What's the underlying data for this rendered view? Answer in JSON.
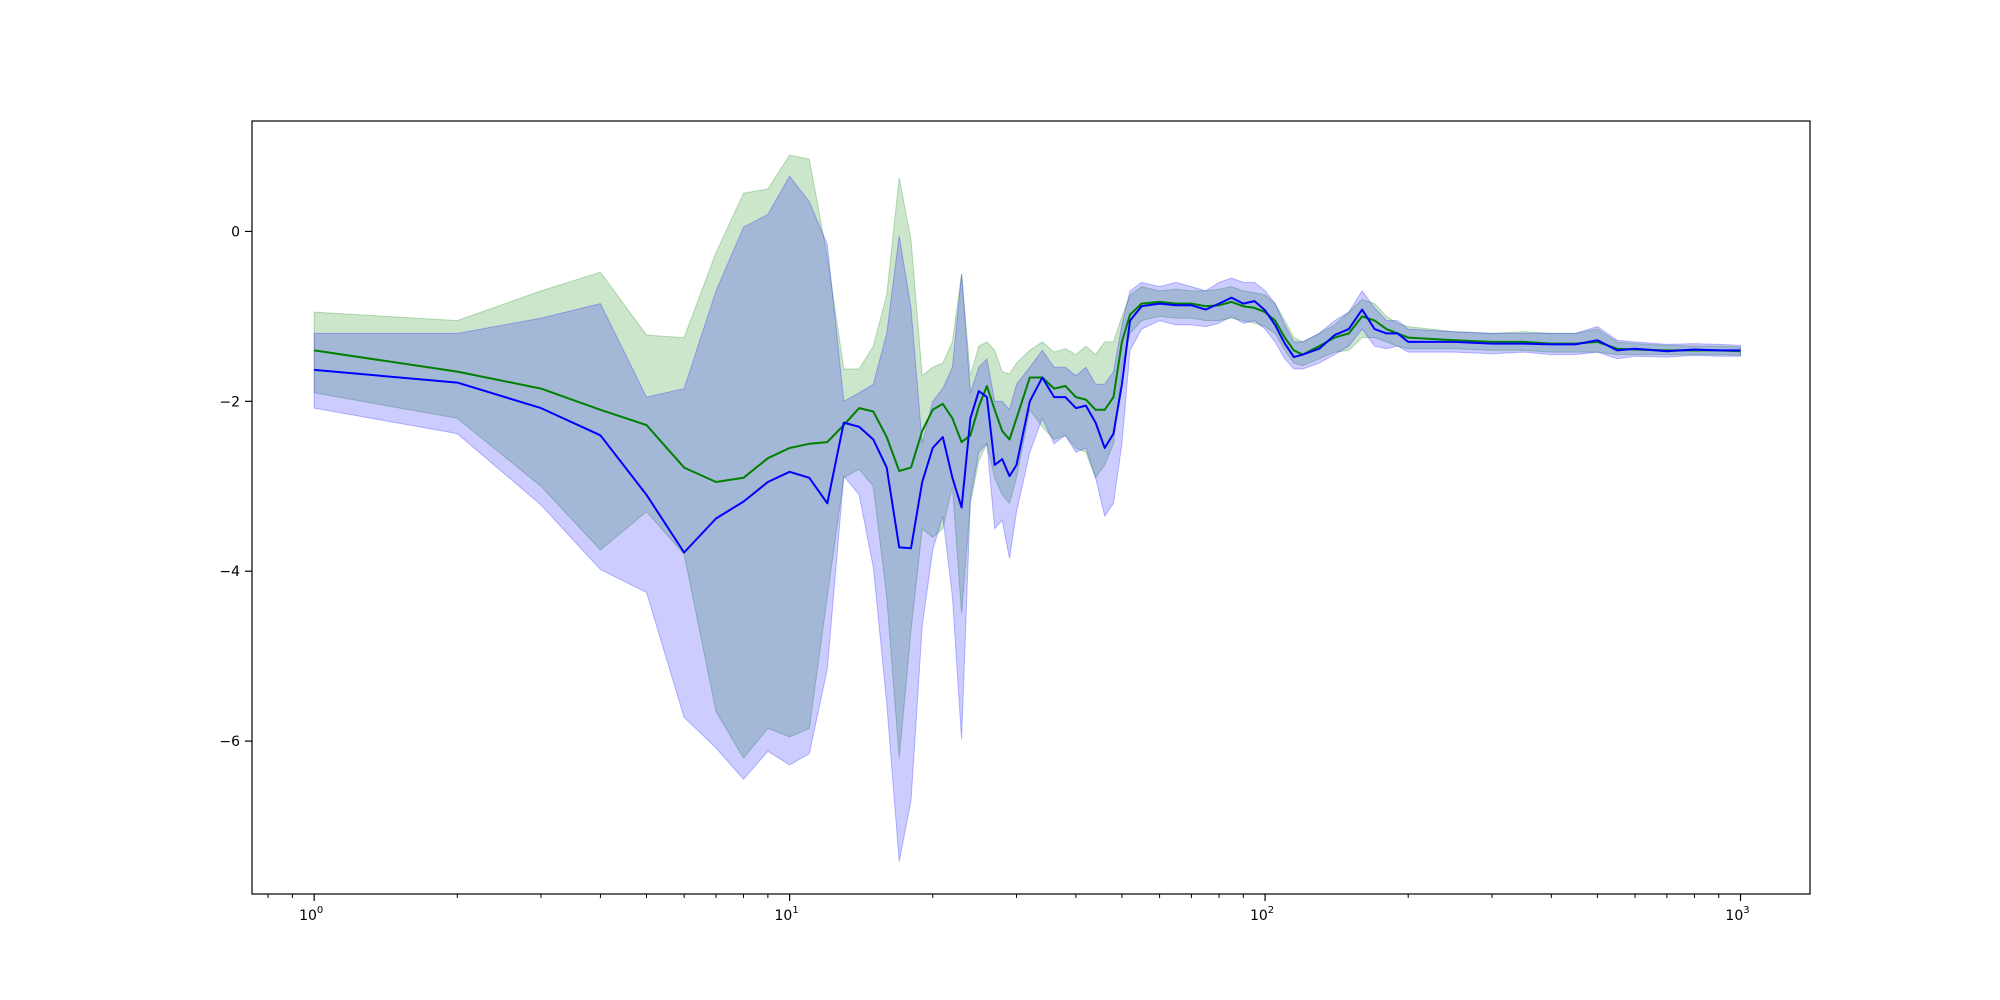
{
  "chart_data": {
    "type": "line",
    "title": "",
    "xlabel": "",
    "ylabel": "",
    "xscale": "log",
    "xlim": [
      0.74,
      1400
    ],
    "ylim": [
      -7.8,
      1.3
    ],
    "grid": false,
    "legend": "none",
    "x_ticks": [
      {
        "value": 1,
        "base": "10",
        "exp": "0"
      },
      {
        "value": 10,
        "base": "10",
        "exp": "1"
      },
      {
        "value": 100,
        "base": "10",
        "exp": "2"
      },
      {
        "value": 1000,
        "base": "10",
        "exp": "3"
      }
    ],
    "y_ticks": [
      {
        "value": 0,
        "label": "0"
      },
      {
        "value": -2,
        "label": "−2"
      },
      {
        "value": -4,
        "label": "−4"
      },
      {
        "value": -6,
        "label": "−6"
      }
    ],
    "x": [
      1,
      2,
      3,
      4,
      5,
      6,
      7,
      8,
      9,
      10,
      11,
      12,
      13,
      14,
      15,
      16,
      17,
      18,
      19,
      20,
      21,
      22,
      23,
      24,
      25,
      26,
      27,
      28,
      29,
      30,
      32,
      34,
      36,
      38,
      40,
      42,
      44,
      46,
      48,
      50,
      52,
      55,
      60,
      65,
      70,
      75,
      80,
      85,
      90,
      95,
      100,
      105,
      110,
      115,
      120,
      130,
      140,
      150,
      160,
      170,
      180,
      190,
      200,
      250,
      300,
      350,
      400,
      450,
      500,
      550,
      600,
      700,
      800,
      900,
      1000
    ],
    "series": [
      {
        "color": "#008000",
        "band_color": "#008000",
        "band_opacity": 0.2,
        "values": [
          -1.4,
          -1.65,
          -1.85,
          -2.1,
          -2.28,
          -2.78,
          -2.95,
          -2.9,
          -2.67,
          -2.55,
          -2.5,
          -2.48,
          -2.28,
          -2.08,
          -2.12,
          -2.42,
          -2.82,
          -2.78,
          -2.35,
          -2.1,
          -2.03,
          -2.2,
          -2.48,
          -2.4,
          -2.06,
          -1.82,
          -2.1,
          -2.35,
          -2.45,
          -2.2,
          -1.72,
          -1.72,
          -1.85,
          -1.82,
          -1.95,
          -1.98,
          -2.1,
          -2.1,
          -1.95,
          -1.3,
          -0.98,
          -0.85,
          -0.83,
          -0.85,
          -0.85,
          -0.88,
          -0.87,
          -0.83,
          -0.88,
          -0.9,
          -0.95,
          -1.05,
          -1.25,
          -1.4,
          -1.45,
          -1.35,
          -1.25,
          -1.2,
          -1.0,
          -1.05,
          -1.15,
          -1.2,
          -1.25,
          -1.28,
          -1.3,
          -1.3,
          -1.32,
          -1.32,
          -1.3,
          -1.38,
          -1.39,
          -1.4,
          -1.4,
          -1.4,
          -1.41
        ],
        "upper": [
          -0.95,
          -1.05,
          -0.7,
          -0.48,
          -1.22,
          -1.25,
          -0.25,
          0.45,
          0.5,
          0.9,
          0.85,
          -0.3,
          -1.62,
          -1.62,
          -1.35,
          -0.75,
          0.63,
          -0.1,
          -1.7,
          -1.6,
          -1.55,
          -1.3,
          -0.5,
          -1.7,
          -1.35,
          -1.3,
          -1.4,
          -1.65,
          -1.68,
          -1.55,
          -1.4,
          -1.3,
          -1.42,
          -1.38,
          -1.45,
          -1.35,
          -1.45,
          -1.3,
          -1.3,
          -1.0,
          -0.75,
          -0.65,
          -0.7,
          -0.68,
          -0.7,
          -0.7,
          -0.68,
          -0.65,
          -0.7,
          -0.72,
          -0.75,
          -0.85,
          -1.05,
          -1.25,
          -1.3,
          -1.2,
          -1.1,
          -0.95,
          -0.8,
          -0.85,
          -1.0,
          -1.08,
          -1.12,
          -1.18,
          -1.2,
          -1.18,
          -1.2,
          -1.2,
          -1.15,
          -1.3,
          -1.32,
          -1.34,
          -1.35,
          -1.35,
          -1.36
        ],
        "lower": [
          -1.9,
          -2.2,
          -3.0,
          -3.75,
          -3.3,
          -3.8,
          -5.65,
          -6.2,
          -5.85,
          -5.95,
          -5.85,
          -4.3,
          -2.9,
          -2.8,
          -3.0,
          -4.3,
          -6.2,
          -4.7,
          -3.5,
          -3.6,
          -3.5,
          -3.0,
          -4.5,
          -3.2,
          -2.7,
          -2.5,
          -2.9,
          -3.1,
          -3.2,
          -2.9,
          -2.1,
          -2.3,
          -2.45,
          -2.4,
          -2.55,
          -2.6,
          -2.9,
          -2.75,
          -2.5,
          -1.6,
          -1.2,
          -1.05,
          -1.0,
          -1.02,
          -1.02,
          -1.05,
          -1.05,
          -1.02,
          -1.05,
          -1.08,
          -1.12,
          -1.2,
          -1.4,
          -1.55,
          -1.58,
          -1.5,
          -1.42,
          -1.4,
          -1.25,
          -1.25,
          -1.3,
          -1.35,
          -1.38,
          -1.38,
          -1.4,
          -1.4,
          -1.42,
          -1.42,
          -1.42,
          -1.45,
          -1.45,
          -1.45,
          -1.45,
          -1.45,
          -1.46
        ]
      },
      {
        "color": "#0000ff",
        "band_color": "#0000ff",
        "band_opacity": 0.2,
        "values": [
          -1.63,
          -1.78,
          -2.08,
          -2.4,
          -3.1,
          -3.78,
          -3.38,
          -3.18,
          -2.95,
          -2.83,
          -2.9,
          -3.2,
          -2.25,
          -2.3,
          -2.45,
          -2.78,
          -3.72,
          -3.73,
          -2.95,
          -2.55,
          -2.42,
          -2.9,
          -3.25,
          -2.2,
          -1.88,
          -1.95,
          -2.75,
          -2.68,
          -2.88,
          -2.75,
          -2.0,
          -1.72,
          -1.95,
          -1.95,
          -2.08,
          -2.05,
          -2.25,
          -2.55,
          -2.38,
          -1.8,
          -1.05,
          -0.88,
          -0.85,
          -0.87,
          -0.87,
          -0.92,
          -0.85,
          -0.78,
          -0.85,
          -0.82,
          -0.93,
          -1.1,
          -1.32,
          -1.48,
          -1.45,
          -1.38,
          -1.22,
          -1.15,
          -0.92,
          -1.15,
          -1.2,
          -1.2,
          -1.3,
          -1.3,
          -1.32,
          -1.32,
          -1.33,
          -1.33,
          -1.28,
          -1.4,
          -1.38,
          -1.41,
          -1.39,
          -1.4,
          -1.4
        ],
        "upper": [
          -1.2,
          -1.2,
          -1.02,
          -0.85,
          -1.95,
          -1.85,
          -0.7,
          0.05,
          0.2,
          0.65,
          0.35,
          -0.15,
          -2.0,
          -1.9,
          -1.8,
          -1.2,
          -0.05,
          -0.9,
          -2.5,
          -2.0,
          -1.85,
          -1.6,
          -0.5,
          -1.9,
          -1.6,
          -1.5,
          -2.0,
          -2.0,
          -2.1,
          -1.8,
          -1.6,
          -1.4,
          -1.6,
          -1.6,
          -1.7,
          -1.6,
          -1.8,
          -1.8,
          -1.65,
          -1.1,
          -0.7,
          -0.6,
          -0.65,
          -0.6,
          -0.65,
          -0.7,
          -0.6,
          -0.55,
          -0.6,
          -0.6,
          -0.7,
          -0.85,
          -1.1,
          -1.3,
          -1.3,
          -1.2,
          -1.05,
          -0.95,
          -0.7,
          -0.9,
          -1.05,
          -1.05,
          -1.15,
          -1.18,
          -1.2,
          -1.2,
          -1.2,
          -1.2,
          -1.12,
          -1.28,
          -1.3,
          -1.33,
          -1.32,
          -1.33,
          -1.34
        ],
        "lower": [
          -2.08,
          -2.38,
          -3.22,
          -3.98,
          -4.25,
          -5.72,
          -6.08,
          -6.45,
          -6.12,
          -6.28,
          -6.15,
          -5.15,
          -2.88,
          -3.1,
          -3.95,
          -5.55,
          -7.42,
          -6.7,
          -4.65,
          -3.75,
          -3.35,
          -4.3,
          -5.98,
          -3.15,
          -2.6,
          -2.5,
          -3.5,
          -3.4,
          -3.85,
          -3.3,
          -2.6,
          -2.2,
          -2.5,
          -2.4,
          -2.6,
          -2.55,
          -2.9,
          -3.35,
          -3.2,
          -2.5,
          -1.4,
          -1.15,
          -1.05,
          -1.1,
          -1.1,
          -1.12,
          -1.08,
          -1.0,
          -1.08,
          -1.05,
          -1.15,
          -1.3,
          -1.5,
          -1.62,
          -1.62,
          -1.55,
          -1.45,
          -1.35,
          -1.15,
          -1.35,
          -1.38,
          -1.35,
          -1.42,
          -1.42,
          -1.44,
          -1.42,
          -1.45,
          -1.45,
          -1.42,
          -1.5,
          -1.47,
          -1.48,
          -1.46,
          -1.47,
          -1.47
        ]
      }
    ]
  }
}
